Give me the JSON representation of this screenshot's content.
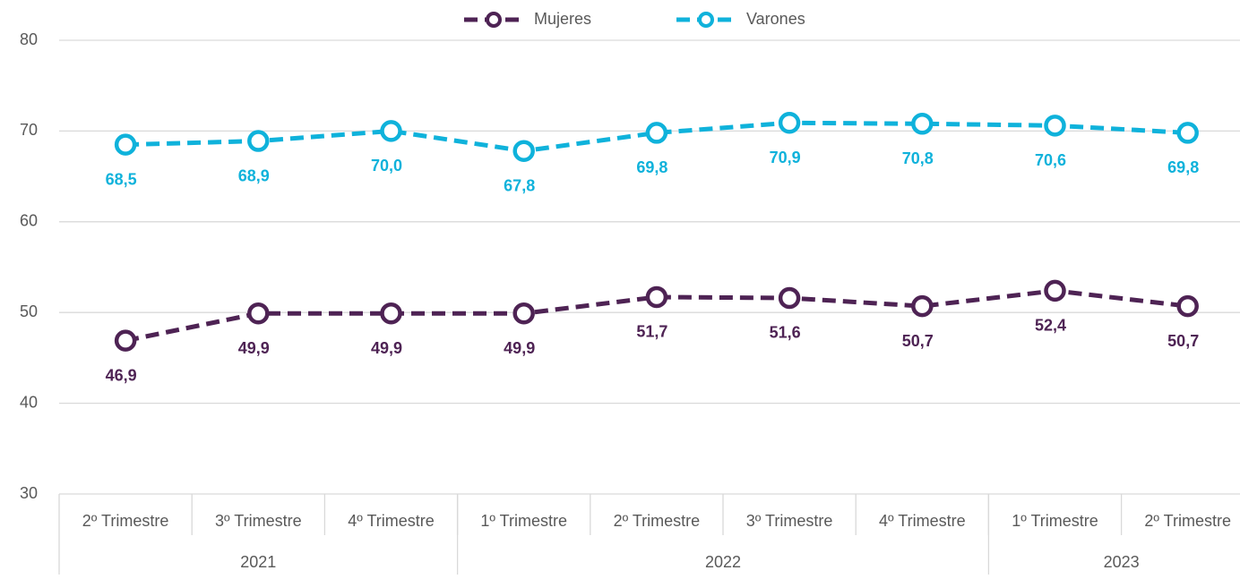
{
  "chart_data": {
    "type": "line",
    "categories": [
      "2º Trimestre",
      "3º Trimestre",
      "4º Trimestre",
      "1º Trimestre",
      "2º Trimestre",
      "3º Trimestre",
      "4º Trimestre",
      "1º Trimestre",
      "2º Trimestre"
    ],
    "category_groups": [
      {
        "label": "2021",
        "span": 3
      },
      {
        "label": "2022",
        "span": 4
      },
      {
        "label": "2023",
        "span": 2
      }
    ],
    "series": [
      {
        "name": "Mujeres",
        "color": "#4e2354",
        "values": [
          46.9,
          49.9,
          49.9,
          49.9,
          51.7,
          51.6,
          50.7,
          52.4,
          50.7
        ],
        "value_labels": [
          "46,9",
          "49,9",
          "49,9",
          "49,9",
          "51,7",
          "51,6",
          "50,7",
          "52,4",
          "50,7"
        ]
      },
      {
        "name": "Varones",
        "color": "#0fb2db",
        "values": [
          68.5,
          68.9,
          70.0,
          67.8,
          69.8,
          70.9,
          70.8,
          70.6,
          69.8
        ],
        "value_labels": [
          "68,5",
          "68,9",
          "70,0",
          "67,8",
          "69,8",
          "70,9",
          "70,8",
          "70,6",
          "69,8"
        ]
      }
    ],
    "ylim": [
      30,
      80
    ],
    "yticks": [
      30,
      40,
      50,
      60,
      70,
      80
    ],
    "grid": true,
    "legend": "top"
  }
}
